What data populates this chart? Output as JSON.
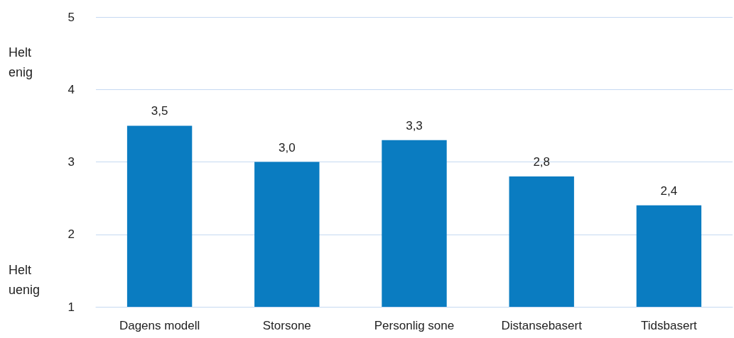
{
  "chart_data": {
    "type": "bar",
    "categories": [
      "Dagens modell",
      "Storsone",
      "Personlig sone",
      "Distansebasert",
      "Tidsbasert"
    ],
    "values": [
      3.5,
      3.0,
      3.3,
      2.8,
      2.4
    ],
    "value_labels": [
      "3,5",
      "3,0",
      "3,3",
      "2,8",
      "2,4"
    ],
    "color": "#0a7cc1",
    "ylim": [
      1,
      5
    ],
    "yticks": [
      1,
      2,
      3,
      4,
      5
    ],
    "grid": "y",
    "annotations": [
      "Helt enig",
      "Helt uenig"
    ]
  }
}
